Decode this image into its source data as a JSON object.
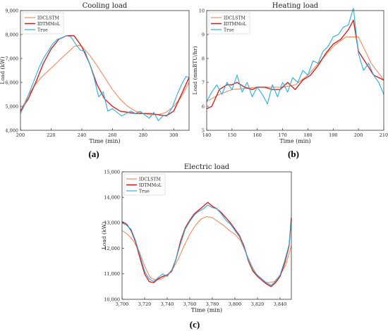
{
  "legend_labels": [
    "IDCLSTM",
    "IDTMMoL",
    "True"
  ],
  "series_colors": {
    "IDCLSTM": "#f08a5d",
    "IDTMMoL": "#d62020",
    "True": "#28aee0"
  },
  "chart_data": [
    {
      "type": "line",
      "title": "Cooling load",
      "xlabel": "Time (min)",
      "ylabel": "Load (kW)",
      "caption": "(a)",
      "xlim": [
        200,
        310
      ],
      "ylim": [
        4000,
        9000
      ],
      "xticks": [
        200,
        220,
        240,
        260,
        280,
        300
      ],
      "xtick_labels": [
        "200",
        "220",
        "240",
        "260",
        "280",
        "300"
      ],
      "yticks": [
        4000,
        5000,
        6000,
        7000,
        8000,
        9000
      ],
      "ytick_labels": [
        "4,000",
        "5,000",
        "6,000",
        "7,000",
        "8,000",
        "9,000"
      ],
      "legend_position": "top-left",
      "series": [
        {
          "name": "IDCLSTM",
          "x": [
            200,
            205,
            210,
            215,
            220,
            225,
            230,
            235,
            238,
            240,
            245,
            250,
            255,
            260,
            265,
            270,
            275,
            280,
            285,
            290,
            295,
            300,
            305,
            310
          ],
          "y": [
            4800,
            5450,
            5950,
            6300,
            6600,
            6900,
            7200,
            7500,
            7550,
            7500,
            7150,
            6700,
            6200,
            5700,
            5300,
            5000,
            4800,
            4700,
            4650,
            4650,
            4750,
            5000,
            5400,
            6000
          ]
        },
        {
          "name": "IDTMMoL",
          "x": [
            200,
            205,
            210,
            215,
            220,
            225,
            230,
            235,
            240,
            245,
            250,
            255,
            260,
            265,
            270,
            275,
            280,
            285,
            290,
            295,
            300,
            305,
            310
          ],
          "y": [
            4800,
            5300,
            6000,
            6800,
            7400,
            7800,
            7950,
            7950,
            7500,
            6800,
            5900,
            5300,
            5000,
            4800,
            4750,
            4700,
            4700,
            4700,
            4650,
            4600,
            4800,
            5500,
            6200
          ]
        },
        {
          "name": "True",
          "x": [
            200,
            203,
            206,
            209,
            212,
            215,
            218,
            221,
            224,
            227,
            230,
            233,
            236,
            239,
            242,
            245,
            248,
            251,
            254,
            257,
            260,
            263,
            266,
            269,
            272,
            275,
            278,
            281,
            284,
            287,
            290,
            293,
            296,
            299,
            302,
            305,
            308,
            310
          ],
          "y": [
            4700,
            5100,
            5600,
            6100,
            6600,
            7000,
            7300,
            7600,
            7800,
            7850,
            7950,
            7900,
            7600,
            7350,
            7300,
            6800,
            6200,
            5400,
            5600,
            4800,
            4900,
            4750,
            4600,
            4700,
            4800,
            4700,
            4800,
            4650,
            4500,
            4750,
            4400,
            4600,
            4650,
            4950,
            5450,
            5900,
            6250,
            6200
          ]
        }
      ]
    },
    {
      "type": "line",
      "title": "Heating load",
      "xlabel": "Time (min)",
      "ylabel": "Load (mmBTU/hr)",
      "caption": "(b)",
      "xlim": [
        140,
        210
      ],
      "ylim": [
        5,
        10
      ],
      "xticks": [
        140,
        150,
        160,
        170,
        180,
        190,
        200,
        210
      ],
      "xtick_labels": [
        "140",
        "150",
        "160",
        "170",
        "180",
        "190",
        "200",
        "210"
      ],
      "yticks": [
        5,
        6,
        7,
        8,
        9,
        10
      ],
      "ytick_labels": [
        "5",
        "6",
        "7",
        "8",
        "9",
        "10"
      ],
      "legend_position": "top-left",
      "series": [
        {
          "name": "IDCLSTM",
          "x": [
            140,
            145,
            150,
            155,
            160,
            165,
            170,
            175,
            180,
            185,
            190,
            195,
            200,
            205,
            210
          ],
          "y": [
            6.2,
            6.5,
            6.7,
            6.75,
            6.8,
            6.8,
            6.8,
            6.9,
            7.3,
            7.9,
            8.5,
            8.9,
            8.9,
            7.8,
            7.1
          ]
        },
        {
          "name": "IDTMMoL",
          "x": [
            140,
            142,
            145,
            148,
            150,
            152,
            155,
            158,
            160,
            163,
            166,
            169,
            172,
            175,
            178,
            181,
            184,
            187,
            190,
            193,
            196,
            198,
            200,
            203,
            206,
            210
          ],
          "y": [
            5.9,
            6.0,
            6.7,
            6.9,
            6.9,
            7.0,
            6.8,
            6.7,
            6.8,
            6.8,
            6.7,
            6.7,
            7.0,
            6.7,
            7.1,
            7.3,
            7.7,
            8.2,
            8.6,
            8.8,
            9.2,
            9.6,
            8.3,
            7.8,
            7.3,
            7.1
          ]
        },
        {
          "name": "True",
          "x": [
            140,
            142,
            144,
            146,
            148,
            150,
            152,
            154,
            156,
            158,
            160,
            162,
            164,
            166,
            168,
            170,
            172,
            174,
            176,
            178,
            180,
            182,
            184,
            186,
            188,
            190,
            192,
            194,
            196,
            198,
            200,
            202,
            204,
            206,
            208,
            210
          ],
          "y": [
            6.2,
            6.6,
            6.9,
            6.5,
            7.0,
            6.7,
            7.3,
            6.6,
            7.0,
            6.4,
            6.8,
            6.5,
            6.1,
            6.9,
            6.4,
            7.0,
            6.6,
            7.2,
            7.0,
            7.5,
            7.3,
            7.9,
            7.8,
            8.3,
            8.5,
            8.9,
            9.0,
            9.3,
            9.4,
            10.1,
            8.2,
            7.5,
            7.8,
            7.3,
            7.0,
            6.5
          ]
        }
      ]
    },
    {
      "type": "line",
      "title": "Electric load",
      "xlabel": "Time (min)",
      "ylabel": "Load (kW)",
      "caption": "(c)",
      "xlim": [
        3700,
        3850
      ],
      "ylim": [
        10000,
        15000
      ],
      "xticks": [
        3700,
        3720,
        3740,
        3760,
        3780,
        3800,
        3820,
        3840
      ],
      "xtick_labels": [
        "3,700",
        "3,720",
        "3,740",
        "3,760",
        "3,780",
        "3,800",
        "3,820",
        "3,840"
      ],
      "yticks": [
        10000,
        11000,
        12000,
        13000,
        14000,
        15000
      ],
      "ytick_labels": [
        "10,000",
        "11,000",
        "12,000",
        "13,000",
        "14,000",
        "15,000"
      ],
      "legend_position": "top-left",
      "series": [
        {
          "name": "IDCLSTM",
          "x": [
            3700,
            3705,
            3710,
            3715,
            3720,
            3725,
            3730,
            3735,
            3740,
            3745,
            3750,
            3755,
            3760,
            3765,
            3770,
            3775,
            3780,
            3785,
            3790,
            3795,
            3800,
            3805,
            3810,
            3815,
            3820,
            3825,
            3830,
            3835,
            3840,
            3845,
            3850
          ],
          "y": [
            12700,
            12550,
            12300,
            11900,
            11300,
            10850,
            10750,
            10800,
            10950,
            11200,
            11600,
            12100,
            12550,
            12900,
            13150,
            13250,
            13200,
            13050,
            12900,
            12700,
            12550,
            12300,
            11800,
            11300,
            10900,
            10700,
            10650,
            10700,
            10950,
            11350,
            12100
          ]
        },
        {
          "name": "IDTMMoL",
          "x": [
            3700,
            3704,
            3708,
            3712,
            3716,
            3720,
            3724,
            3728,
            3732,
            3736,
            3740,
            3744,
            3748,
            3752,
            3756,
            3760,
            3764,
            3768,
            3772,
            3776,
            3780,
            3784,
            3788,
            3792,
            3796,
            3800,
            3804,
            3808,
            3812,
            3816,
            3820,
            3824,
            3828,
            3832,
            3836,
            3840,
            3844,
            3848,
            3850
          ],
          "y": [
            13050,
            12950,
            12700,
            12250,
            11600,
            11000,
            10700,
            10650,
            10800,
            10900,
            10950,
            11100,
            11600,
            12300,
            12800,
            13100,
            13350,
            13500,
            13650,
            13800,
            13650,
            13550,
            13400,
            13200,
            13000,
            12750,
            12500,
            12100,
            11500,
            11100,
            10900,
            10750,
            10600,
            10500,
            10650,
            10900,
            11400,
            12100,
            13200
          ]
        },
        {
          "name": "True",
          "x": [
            3700,
            3704,
            3708,
            3712,
            3716,
            3720,
            3724,
            3728,
            3732,
            3736,
            3740,
            3744,
            3748,
            3752,
            3756,
            3760,
            3764,
            3768,
            3772,
            3776,
            3780,
            3784,
            3788,
            3792,
            3796,
            3800,
            3804,
            3808,
            3812,
            3816,
            3820,
            3824,
            3828,
            3832,
            3836,
            3840,
            3844,
            3848,
            3850
          ],
          "y": [
            13000,
            12900,
            12750,
            12300,
            11700,
            11100,
            10800,
            10700,
            10850,
            11000,
            10900,
            11150,
            11600,
            12200,
            12750,
            13050,
            13300,
            13450,
            13550,
            13700,
            13600,
            13550,
            13350,
            13100,
            12950,
            12700,
            12450,
            12050,
            11550,
            11150,
            10950,
            10800,
            10650,
            10550,
            10700,
            10950,
            11500,
            12150,
            13050
          ]
        }
      ]
    }
  ]
}
